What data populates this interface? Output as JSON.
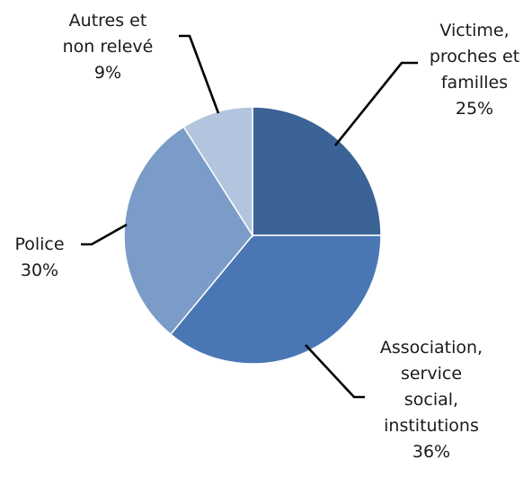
{
  "chart_data": {
    "type": "pie",
    "title": "",
    "slices": [
      {
        "label_lines": [
          "Victime,",
          "proches et",
          "familles"
        ],
        "value_label": "25%",
        "value": 25,
        "color": "#3b6396"
      },
      {
        "label_lines": [
          "Association,",
          "service",
          "social,",
          "institutions"
        ],
        "value_label": "36%",
        "value": 36,
        "color": "#4a77b4"
      },
      {
        "label_lines": [
          "Police"
        ],
        "value_label": "30%",
        "value": 30,
        "color": "#7b9cc8"
      },
      {
        "label_lines": [
          "Autres et",
          "non relevé"
        ],
        "value_label": "9%",
        "value": 9,
        "color": "#b3c4df"
      }
    ],
    "legend": "none",
    "data_labels": "outside with leader lines"
  }
}
